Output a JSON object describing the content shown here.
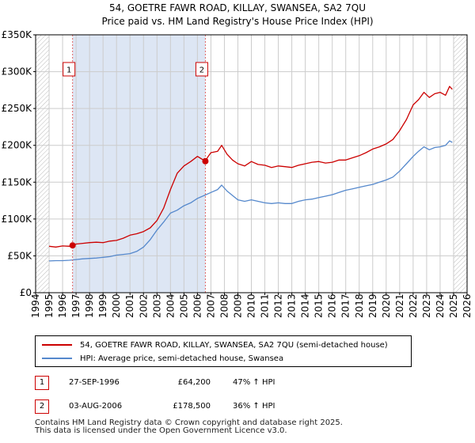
{
  "title_line1": "54, GOETRE FAWR ROAD, KILLAY, SWANSEA, SA2 7QU",
  "title_line2": "Price paid vs. HM Land Registry's House Price Index (HPI)",
  "legend": {
    "property": "54, GOETRE FAWR ROAD, KILLAY, SWANSEA, SA2 7QU (semi-detached house)",
    "hpi": "HPI: Average price, semi-detached house, Swansea"
  },
  "sales": [
    {
      "num": "1",
      "date": "27-SEP-1996",
      "price": "£64,200",
      "hpi": "47% ↑ HPI"
    },
    {
      "num": "2",
      "date": "03-AUG-2006",
      "price": "£178,500",
      "hpi": "36% ↑ HPI"
    }
  ],
  "footer_line1": "Contains HM Land Registry data © Crown copyright and database right 2025.",
  "footer_line2": "This data is licensed under the Open Government Licence v3.0.",
  "colors": {
    "property": "#cc0000",
    "hpi": "#5588cc",
    "shade": "#dde6f4",
    "grid": "#cccccc"
  },
  "chart_data": {
    "type": "line",
    "xlim": [
      1994,
      2026
    ],
    "ylim": [
      0,
      350000
    ],
    "x_ticks": [
      1994,
      1995,
      1996,
      1997,
      1998,
      1999,
      2000,
      2001,
      2002,
      2003,
      2004,
      2005,
      2006,
      2007,
      2008,
      2009,
      2010,
      2011,
      2012,
      2013,
      2014,
      2015,
      2016,
      2017,
      2018,
      2019,
      2020,
      2021,
      2022,
      2023,
      2024,
      2025,
      2026
    ],
    "y_ticks": [
      {
        "value": 0,
        "label": "£0"
      },
      {
        "value": 50000,
        "label": "£50K"
      },
      {
        "value": 100000,
        "label": "£100K"
      },
      {
        "value": 150000,
        "label": "£150K"
      },
      {
        "value": 200000,
        "label": "£200K"
      },
      {
        "value": 250000,
        "label": "£250K"
      },
      {
        "value": 300000,
        "label": "£300K"
      },
      {
        "value": 350000,
        "label": "£350K"
      }
    ],
    "grid": true,
    "hatched_ranges": [
      [
        1994,
        1995.0
      ],
      [
        2025.0,
        2026
      ]
    ],
    "series": [
      {
        "name": "54, GOETRE FAWR ROAD, KILLAY, SWANSEA, SA2 7QU (semi-detached house)",
        "color": "#cc0000",
        "x": [
          1995.0,
          1995.5,
          1996.0,
          1996.5,
          1996.74,
          1997.0,
          1997.5,
          1998.0,
          1998.5,
          1999.0,
          1999.5,
          2000.0,
          2000.5,
          2001.0,
          2001.5,
          2002.0,
          2002.5,
          2003.0,
          2003.5,
          2004.0,
          2004.5,
          2005.0,
          2005.5,
          2006.0,
          2006.59,
          2006.8,
          2007.0,
          2007.5,
          2007.8,
          2008.2,
          2008.6,
          2009.0,
          2009.5,
          2010.0,
          2010.5,
          2011.0,
          2011.5,
          2012.0,
          2012.5,
          2013.0,
          2013.5,
          2014.0,
          2014.5,
          2015.0,
          2015.5,
          2016.0,
          2016.5,
          2017.0,
          2017.5,
          2018.0,
          2018.5,
          2019.0,
          2019.5,
          2020.0,
          2020.5,
          2021.0,
          2021.5,
          2022.0,
          2022.4,
          2022.8,
          2023.2,
          2023.6,
          2024.0,
          2024.4,
          2024.7,
          2024.9
        ],
        "y": [
          63000,
          62000,
          63500,
          63000,
          64200,
          66000,
          67000,
          68000,
          68500,
          68000,
          70000,
          71000,
          74000,
          78000,
          80000,
          83000,
          88000,
          98000,
          115000,
          140000,
          162000,
          172000,
          178000,
          185000,
          178500,
          185000,
          190000,
          192000,
          200000,
          188000,
          180000,
          175000,
          172000,
          178000,
          174000,
          173000,
          170000,
          172000,
          171000,
          170000,
          173000,
          175000,
          177000,
          178000,
          176000,
          177000,
          180000,
          180000,
          183000,
          186000,
          190000,
          195000,
          198000,
          202000,
          208000,
          220000,
          235000,
          255000,
          262000,
          272000,
          265000,
          270000,
          272000,
          268000,
          280000,
          276000
        ]
      },
      {
        "name": "HPI: Average price, semi-detached house, Swansea",
        "color": "#5588cc",
        "x": [
          1995.0,
          1995.5,
          1996.0,
          1996.5,
          1997.0,
          1997.5,
          1998.0,
          1998.5,
          1999.0,
          1999.5,
          2000.0,
          2000.5,
          2001.0,
          2001.5,
          2002.0,
          2002.5,
          2003.0,
          2003.5,
          2004.0,
          2004.5,
          2005.0,
          2005.5,
          2006.0,
          2006.5,
          2007.0,
          2007.5,
          2007.8,
          2008.2,
          2008.6,
          2009.0,
          2009.5,
          2010.0,
          2010.5,
          2011.0,
          2011.5,
          2012.0,
          2012.5,
          2013.0,
          2013.5,
          2014.0,
          2014.5,
          2015.0,
          2015.5,
          2016.0,
          2016.5,
          2017.0,
          2017.5,
          2018.0,
          2018.5,
          2019.0,
          2019.5,
          2020.0,
          2020.5,
          2021.0,
          2021.5,
          2022.0,
          2022.4,
          2022.8,
          2023.2,
          2023.6,
          2024.0,
          2024.4,
          2024.7,
          2024.9
        ],
        "y": [
          43000,
          43500,
          43500,
          44000,
          45000,
          46000,
          46500,
          47000,
          48000,
          49000,
          51000,
          52000,
          53000,
          56000,
          62000,
          72000,
          85000,
          96000,
          108000,
          112000,
          118000,
          122000,
          128000,
          132000,
          136000,
          140000,
          146000,
          138000,
          132000,
          126000,
          124000,
          126000,
          124000,
          122000,
          121000,
          122000,
          121000,
          121000,
          124000,
          126000,
          127000,
          129000,
          131000,
          133000,
          136000,
          139000,
          141000,
          143000,
          145000,
          147000,
          150000,
          153000,
          157000,
          165000,
          175000,
          185000,
          192000,
          198000,
          194000,
          197000,
          198000,
          200000,
          206000,
          204000
        ]
      }
    ],
    "markers": [
      {
        "label": "1",
        "x": 1996.74,
        "y": 64200
      },
      {
        "label": "2",
        "x": 2006.59,
        "y": 178500
      }
    ]
  }
}
